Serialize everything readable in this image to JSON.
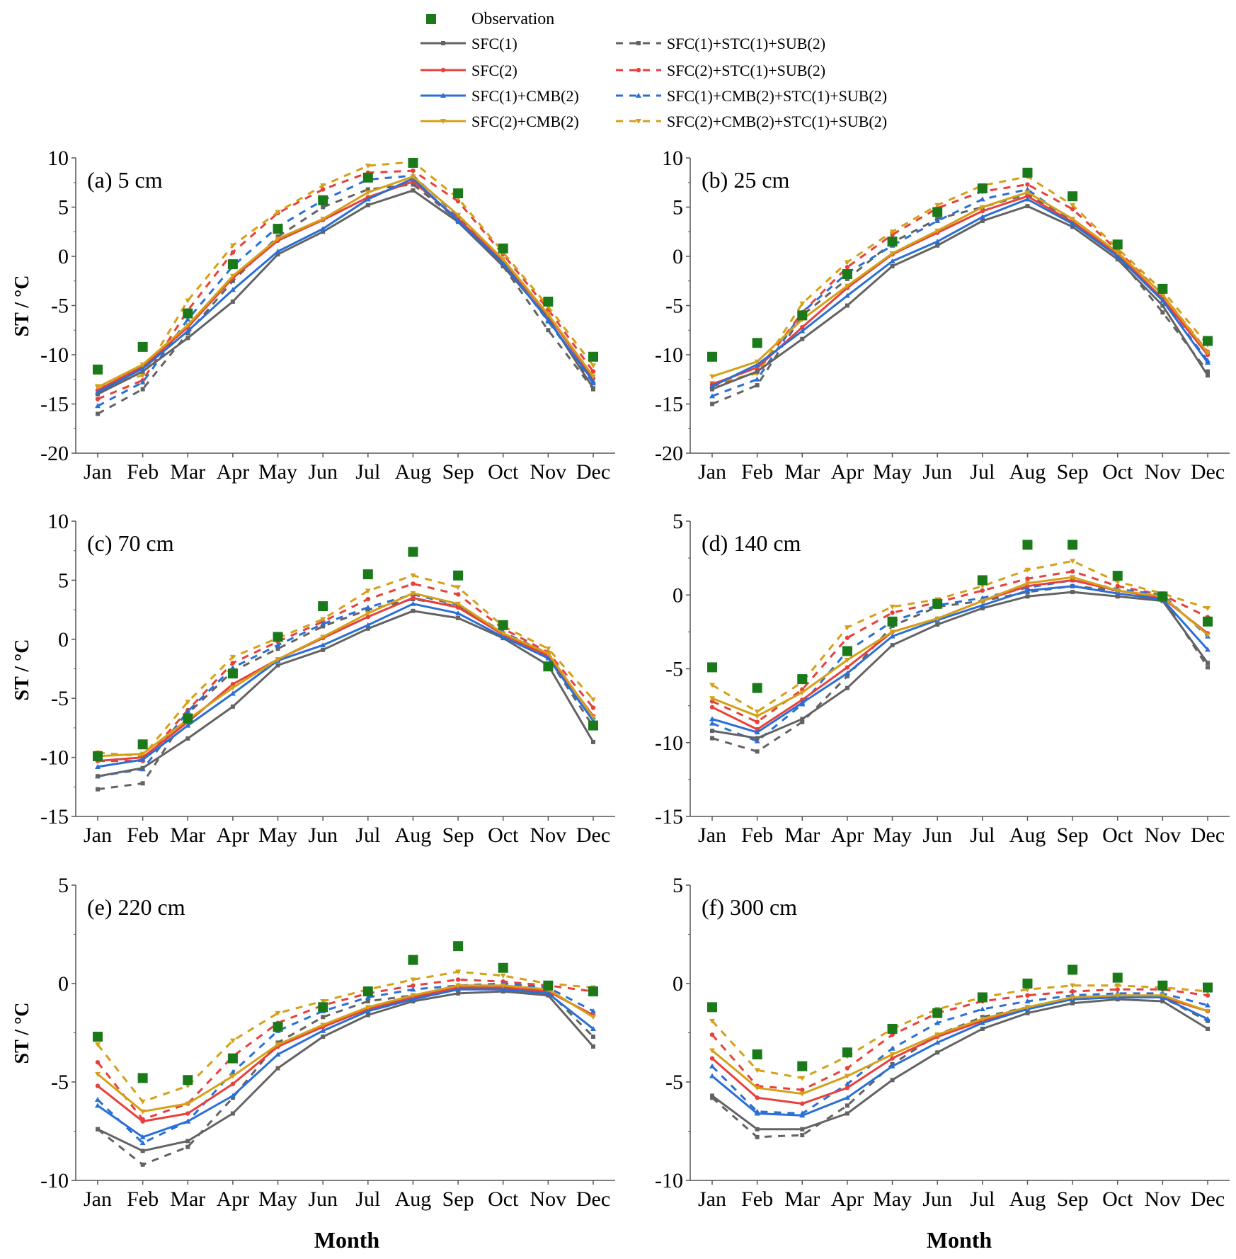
{
  "figure": {
    "ylabel": "ST / °C",
    "xlabel": "Month"
  },
  "legend": {
    "observation": "Observation",
    "entries": [
      {
        "label": "SFC(1)",
        "color": "#636363",
        "dash": false,
        "marker": "square"
      },
      {
        "label": "SFC(2)",
        "color": "#e8403c",
        "dash": false,
        "marker": "circle"
      },
      {
        "label": "SFC(1)+CMB(2)",
        "color": "#2a6fd6",
        "dash": false,
        "marker": "triangle"
      },
      {
        "label": "SFC(2)+CMB(2)",
        "color": "#d4a017",
        "dash": false,
        "marker": "tridown"
      },
      {
        "label": "SFC(1)+STC(1)+SUB(2)",
        "color": "#636363",
        "dash": true,
        "marker": "square"
      },
      {
        "label": "SFC(2)+STC(1)+SUB(2)",
        "color": "#e8403c",
        "dash": true,
        "marker": "circle"
      },
      {
        "label": "SFC(1)+CMB(2)+STC(1)+SUB(2)",
        "color": "#2a6fd6",
        "dash": true,
        "marker": "triangle"
      },
      {
        "label": "SFC(2)+CMB(2)+STC(1)+SUB(2)",
        "color": "#d4a017",
        "dash": true,
        "marker": "tridown"
      }
    ],
    "obs_color": "#1a7a1a"
  },
  "chart_data": [
    {
      "type": "line",
      "title": "(a) 5 cm",
      "categories": [
        "Jan",
        "Feb",
        "Mar",
        "Apr",
        "May",
        "Jun",
        "Jul",
        "Aug",
        "Sep",
        "Oct",
        "Nov",
        "Dec"
      ],
      "ylim": [
        -20,
        10
      ],
      "yticks": [
        -20,
        -15,
        -10,
        -5,
        0,
        5,
        10
      ],
      "observation": [
        -11.5,
        -9.2,
        -5.8,
        -0.8,
        2.8,
        5.7,
        8.0,
        9.5,
        6.4,
        0.8,
        -4.6,
        -10.2
      ],
      "series": [
        {
          "name": "SFC(1)",
          "values": [
            -14.0,
            -11.7,
            -8.3,
            -4.6,
            0.2,
            2.5,
            5.2,
            6.7,
            3.5,
            -1.0,
            -6.3,
            -13.4
          ]
        },
        {
          "name": "SFC(2)",
          "values": [
            -13.6,
            -11.2,
            -7.2,
            -2.2,
            1.6,
            3.7,
            6.0,
            7.6,
            3.8,
            -0.5,
            -6.0,
            -12.4
          ]
        },
        {
          "name": "SFC(1)+CMB(2)",
          "values": [
            -13.8,
            -11.4,
            -7.6,
            -3.4,
            0.5,
            2.8,
            5.8,
            7.9,
            3.6,
            -0.7,
            -6.5,
            -12.7
          ]
        },
        {
          "name": "SFC(2)+CMB(2)",
          "values": [
            -13.3,
            -11.0,
            -7.0,
            -2.0,
            1.8,
            3.8,
            6.5,
            8.1,
            4.2,
            -0.3,
            -5.9,
            -12.2
          ]
        },
        {
          "name": "SFC(1)+STC(1)+SUB(2)",
          "values": [
            -16.0,
            -13.5,
            -7.8,
            -2.5,
            2.0,
            5.0,
            6.8,
            7.3,
            3.7,
            -1.0,
            -7.5,
            -13.5
          ]
        },
        {
          "name": "SFC(2)+STC(1)+SUB(2)",
          "values": [
            -14.5,
            -12.6,
            -5.5,
            0.4,
            4.4,
            6.8,
            8.5,
            8.7,
            5.6,
            0.2,
            -5.4,
            -11.7
          ]
        },
        {
          "name": "SFC(1)+CMB(2)+STC(1)+SUB(2)",
          "values": [
            -15.2,
            -12.8,
            -6.4,
            -1.0,
            3.0,
            5.7,
            7.8,
            8.2,
            4.0,
            -0.6,
            -6.6,
            -12.9
          ]
        },
        {
          "name": "SFC(2)+CMB(2)+STC(1)+SUB(2)",
          "values": [
            -13.2,
            -12.1,
            -4.5,
            1.1,
            4.5,
            7.2,
            9.2,
            9.6,
            5.9,
            0.4,
            -5.1,
            -11.1
          ]
        }
      ]
    },
    {
      "type": "line",
      "title": "(b) 25 cm",
      "categories": [
        "Jan",
        "Feb",
        "Mar",
        "Apr",
        "May",
        "Jun",
        "Jul",
        "Aug",
        "Sep",
        "Oct",
        "Nov",
        "Dec"
      ],
      "ylim": [
        -20,
        10
      ],
      "yticks": [
        -20,
        -15,
        -10,
        -5,
        0,
        5,
        10
      ],
      "observation": [
        -10.2,
        -8.8,
        -6.0,
        -1.8,
        1.5,
        4.5,
        6.9,
        8.5,
        6.1,
        1.2,
        -3.3,
        -8.6
      ],
      "series": [
        {
          "name": "SFC(1)",
          "values": [
            -13.5,
            -11.7,
            -8.4,
            -5.0,
            -1.0,
            1.1,
            3.6,
            5.1,
            3.0,
            -0.3,
            -5.0,
            -12.1
          ]
        },
        {
          "name": "SFC(2)",
          "values": [
            -13.0,
            -11.3,
            -7.2,
            -3.2,
            0.2,
            2.4,
            4.6,
            6.1,
            3.5,
            0.2,
            -4.3,
            -10.0
          ]
        },
        {
          "name": "SFC(1)+CMB(2)",
          "values": [
            -13.2,
            -11.0,
            -7.6,
            -4.0,
            -0.5,
            1.5,
            4.0,
            5.8,
            3.3,
            0.0,
            -4.5,
            -10.8
          ]
        },
        {
          "name": "SFC(2)+CMB(2)",
          "values": [
            -12.2,
            -10.7,
            -6.4,
            -3.0,
            0.3,
            2.6,
            5.0,
            6.5,
            3.8,
            0.4,
            -3.9,
            -9.8
          ]
        },
        {
          "name": "SFC(1)+STC(1)+SUB(2)",
          "values": [
            -15.0,
            -13.1,
            -6.0,
            -2.3,
            1.4,
            3.8,
            5.0,
            6.3,
            3.5,
            0.0,
            -5.7,
            -11.7
          ]
        },
        {
          "name": "SFC(2)+STC(1)+SUB(2)",
          "values": [
            -13.2,
            -11.8,
            -5.7,
            -1.1,
            2.2,
            4.9,
            6.6,
            7.3,
            4.8,
            0.6,
            -3.9,
            -9.7
          ]
        },
        {
          "name": "SFC(1)+CMB(2)+STC(1)+SUB(2)",
          "values": [
            -14.2,
            -12.5,
            -5.7,
            -1.7,
            1.1,
            3.6,
            5.8,
            6.8,
            3.5,
            0.1,
            -4.5,
            -10.6
          ]
        },
        {
          "name": "SFC(2)+CMB(2)+STC(1)+SUB(2)",
          "values": [
            -12.9,
            -11.9,
            -4.8,
            -0.6,
            2.5,
            5.2,
            7.2,
            8.1,
            5.2,
            0.8,
            -3.5,
            -9.0
          ]
        }
      ]
    },
    {
      "type": "line",
      "title": "(c) 70 cm",
      "categories": [
        "Jan",
        "Feb",
        "Mar",
        "Apr",
        "May",
        "Jun",
        "Jul",
        "Aug",
        "Sep",
        "Oct",
        "Nov",
        "Dec"
      ],
      "ylim": [
        -15,
        10
      ],
      "yticks": [
        -15,
        -10,
        -5,
        0,
        5,
        10
      ],
      "observation": [
        -9.9,
        -8.9,
        -6.7,
        -2.9,
        0.2,
        2.8,
        5.5,
        7.4,
        5.4,
        1.2,
        -2.3,
        -7.3
      ],
      "series": [
        {
          "name": "SFC(1)",
          "values": [
            -11.6,
            -10.9,
            -8.4,
            -5.7,
            -2.2,
            -0.9,
            0.9,
            2.4,
            1.8,
            0.1,
            -2.2,
            -8.7
          ]
        },
        {
          "name": "SFC(2)",
          "values": [
            -10.3,
            -10.0,
            -7.0,
            -3.8,
            -1.7,
            0.1,
            1.9,
            3.5,
            2.7,
            0.4,
            -1.4,
            -6.5
          ]
        },
        {
          "name": "SFC(1)+CMB(2)",
          "values": [
            -10.8,
            -10.2,
            -7.3,
            -4.6,
            -1.8,
            -0.5,
            1.2,
            3.0,
            2.2,
            0.2,
            -1.6,
            -6.9
          ]
        },
        {
          "name": "SFC(2)+CMB(2)",
          "values": [
            -9.9,
            -9.7,
            -6.8,
            -4.1,
            -1.7,
            0.2,
            2.2,
            3.9,
            3.0,
            0.5,
            -1.2,
            -6.6
          ]
        },
        {
          "name": "SFC(1)+STC(1)+SUB(2)",
          "values": [
            -12.7,
            -12.2,
            -6.3,
            -2.7,
            -0.8,
            1.1,
            2.5,
            3.4,
            2.8,
            0.4,
            -1.6,
            -7.4
          ]
        },
        {
          "name": "SFC(2)+STC(1)+SUB(2)",
          "values": [
            -10.3,
            -10.3,
            -6.0,
            -2.0,
            -0.2,
            1.5,
            3.4,
            4.7,
            3.8,
            0.9,
            -1.1,
            -5.8
          ]
        },
        {
          "name": "SFC(1)+CMB(2)+STC(1)+SUB(2)",
          "values": [
            -11.6,
            -11.0,
            -6.1,
            -2.4,
            -0.5,
            1.3,
            2.7,
            3.8,
            2.9,
            0.6,
            -1.2,
            -6.6
          ]
        },
        {
          "name": "SFC(2)+CMB(2)+STC(1)+SUB(2)",
          "values": [
            -9.6,
            -9.9,
            -5.3,
            -1.5,
            0.1,
            1.7,
            4.1,
            5.4,
            4.4,
            1.1,
            -0.8,
            -5.1
          ]
        }
      ]
    },
    {
      "type": "line",
      "title": "(d) 140 cm",
      "categories": [
        "Jan",
        "Feb",
        "Mar",
        "Apr",
        "May",
        "Jun",
        "Jul",
        "Aug",
        "Sep",
        "Oct",
        "Nov",
        "Dec"
      ],
      "ylim": [
        -15,
        5
      ],
      "yticks": [
        -15,
        -10,
        -5,
        0,
        5
      ],
      "observation": [
        -4.9,
        -6.3,
        -5.7,
        -3.8,
        -1.8,
        -0.6,
        1.0,
        3.4,
        3.4,
        1.3,
        -0.1,
        -1.8
      ],
      "series": [
        {
          "name": "SFC(1)",
          "values": [
            -9.2,
            -9.7,
            -8.4,
            -6.3,
            -3.4,
            -2.0,
            -0.9,
            -0.1,
            0.2,
            -0.1,
            -0.4,
            -4.6
          ]
        },
        {
          "name": "SFC(2)",
          "values": [
            -7.6,
            -9.1,
            -7.1,
            -4.9,
            -2.5,
            -1.6,
            -0.4,
            0.6,
            1.0,
            0.3,
            -0.2,
            -2.6
          ]
        },
        {
          "name": "SFC(1)+CMB(2)",
          "values": [
            -8.4,
            -9.3,
            -7.3,
            -5.3,
            -2.8,
            -1.7,
            -0.7,
            0.3,
            0.6,
            0.1,
            -0.3,
            -3.7
          ]
        },
        {
          "name": "SFC(2)+CMB(2)",
          "values": [
            -7.0,
            -8.2,
            -6.6,
            -4.4,
            -2.5,
            -1.6,
            -0.4,
            0.8,
            1.2,
            0.3,
            -0.1,
            -2.7
          ]
        },
        {
          "name": "SFC(1)+STC(1)+SUB(2)",
          "values": [
            -9.7,
            -10.6,
            -8.6,
            -5.5,
            -2.1,
            -0.8,
            -0.4,
            0.2,
            0.6,
            0.3,
            -0.2,
            -4.9
          ]
        },
        {
          "name": "SFC(2)+STC(1)+SUB(2)",
          "values": [
            -7.2,
            -8.6,
            -6.4,
            -2.9,
            -1.2,
            -0.5,
            0.3,
            1.1,
            1.6,
            0.6,
            0.0,
            -1.5
          ]
        },
        {
          "name": "SFC(1)+CMB(2)+STC(1)+SUB(2)",
          "values": [
            -8.7,
            -9.9,
            -7.4,
            -3.8,
            -1.8,
            -0.7,
            -0.2,
            0.5,
            1.0,
            0.4,
            0.0,
            -2.8
          ]
        },
        {
          "name": "SFC(2)+CMB(2)+STC(1)+SUB(2)",
          "values": [
            -6.1,
            -7.9,
            -5.9,
            -2.2,
            -0.8,
            -0.3,
            0.6,
            1.7,
            2.3,
            0.9,
            0.1,
            -0.9
          ]
        }
      ]
    },
    {
      "type": "line",
      "title": "(e) 220 cm",
      "categories": [
        "Jan",
        "Feb",
        "Mar",
        "Apr",
        "May",
        "Jun",
        "Jul",
        "Aug",
        "Sep",
        "Oct",
        "Nov",
        "Dec"
      ],
      "ylim": [
        -10,
        5
      ],
      "yticks": [
        -10,
        -5,
        0,
        5
      ],
      "observation": [
        -2.7,
        -4.8,
        -4.9,
        -3.8,
        -2.2,
        -1.2,
        -0.4,
        1.2,
        1.9,
        0.8,
        -0.1,
        -0.4
      ],
      "series": [
        {
          "name": "SFC(1)",
          "values": [
            -7.4,
            -8.5,
            -8.0,
            -6.6,
            -4.3,
            -2.7,
            -1.6,
            -0.9,
            -0.5,
            -0.4,
            -0.6,
            -3.2
          ]
        },
        {
          "name": "SFC(2)",
          "values": [
            -5.2,
            -7.0,
            -6.6,
            -5.1,
            -3.2,
            -2.2,
            -1.3,
            -0.7,
            -0.2,
            -0.2,
            -0.4,
            -1.6
          ]
        },
        {
          "name": "SFC(1)+CMB(2)",
          "values": [
            -6.2,
            -7.8,
            -7.0,
            -5.7,
            -3.6,
            -2.4,
            -1.4,
            -0.8,
            -0.3,
            -0.3,
            -0.5,
            -2.3
          ]
        },
        {
          "name": "SFC(2)+CMB(2)",
          "values": [
            -4.6,
            -6.5,
            -6.1,
            -4.7,
            -3.1,
            -2.1,
            -1.2,
            -0.6,
            -0.1,
            -0.1,
            -0.3,
            -1.7
          ]
        },
        {
          "name": "SFC(1)+STC(1)+SUB(2)",
          "values": [
            -7.4,
            -9.2,
            -8.3,
            -5.8,
            -3.0,
            -1.7,
            -0.9,
            -0.6,
            -0.2,
            -0.1,
            -0.4,
            -2.7
          ]
        },
        {
          "name": "SFC(2)+STC(1)+SUB(2)",
          "values": [
            -4.0,
            -6.9,
            -6.1,
            -3.7,
            -2.0,
            -1.1,
            -0.5,
            -0.1,
            0.2,
            0.1,
            -0.1,
            -0.4
          ]
        },
        {
          "name": "SFC(1)+CMB(2)+STC(1)+SUB(2)",
          "values": [
            -5.9,
            -8.1,
            -7.0,
            -4.5,
            -2.4,
            -1.4,
            -0.7,
            -0.3,
            -0.1,
            0.0,
            -0.2,
            -1.4
          ]
        },
        {
          "name": "SFC(2)+CMB(2)+STC(1)+SUB(2)",
          "values": [
            -3.1,
            -6.0,
            -5.2,
            -2.9,
            -1.5,
            -0.9,
            -0.3,
            0.2,
            0.6,
            0.4,
            0.0,
            -0.2
          ]
        }
      ]
    },
    {
      "type": "line",
      "title": "(f) 300 cm",
      "categories": [
        "Jan",
        "Feb",
        "Mar",
        "Apr",
        "May",
        "Jun",
        "Jul",
        "Aug",
        "Sep",
        "Oct",
        "Nov",
        "Dec"
      ],
      "ylim": [
        -10,
        5
      ],
      "yticks": [
        -10,
        -5,
        0,
        5
      ],
      "observation": [
        -1.2,
        -3.6,
        -4.2,
        -3.5,
        -2.3,
        -1.5,
        -0.7,
        0.0,
        0.7,
        0.3,
        -0.1,
        -0.2
      ],
      "series": [
        {
          "name": "SFC(1)",
          "values": [
            -5.7,
            -7.4,
            -7.4,
            -6.6,
            -4.9,
            -3.5,
            -2.3,
            -1.5,
            -1.0,
            -0.8,
            -0.9,
            -2.3
          ]
        },
        {
          "name": "SFC(2)",
          "values": [
            -3.8,
            -5.8,
            -6.1,
            -5.3,
            -3.8,
            -2.7,
            -1.9,
            -1.2,
            -0.8,
            -0.6,
            -0.7,
            -1.4
          ]
        },
        {
          "name": "SFC(1)+CMB(2)",
          "values": [
            -4.7,
            -6.6,
            -6.7,
            -5.8,
            -4.2,
            -3.0,
            -2.0,
            -1.3,
            -0.8,
            -0.7,
            -0.7,
            -1.8
          ]
        },
        {
          "name": "SFC(2)+CMB(2)",
          "values": [
            -3.4,
            -5.3,
            -5.6,
            -4.7,
            -3.6,
            -2.6,
            -1.8,
            -1.2,
            -0.7,
            -0.6,
            -0.6,
            -1.4
          ]
        },
        {
          "name": "SFC(1)+STC(1)+SUB(2)",
          "values": [
            -5.8,
            -7.8,
            -7.7,
            -6.2,
            -4.1,
            -2.6,
            -1.7,
            -1.2,
            -0.8,
            -0.6,
            -0.7,
            -1.9
          ]
        },
        {
          "name": "SFC(2)+STC(1)+SUB(2)",
          "values": [
            -2.6,
            -5.2,
            -5.4,
            -4.3,
            -2.6,
            -1.5,
            -0.9,
            -0.6,
            -0.4,
            -0.3,
            -0.3,
            -0.6
          ]
        },
        {
          "name": "SFC(1)+CMB(2)+STC(1)+SUB(2)",
          "values": [
            -4.2,
            -6.5,
            -6.6,
            -5.1,
            -3.3,
            -2.0,
            -1.3,
            -0.9,
            -0.6,
            -0.5,
            -0.5,
            -1.1
          ]
        },
        {
          "name": "SFC(2)+CMB(2)+STC(1)+SUB(2)",
          "values": [
            -1.9,
            -4.4,
            -4.8,
            -3.7,
            -2.3,
            -1.3,
            -0.7,
            -0.3,
            -0.1,
            -0.1,
            -0.2,
            -0.4
          ]
        }
      ]
    }
  ]
}
